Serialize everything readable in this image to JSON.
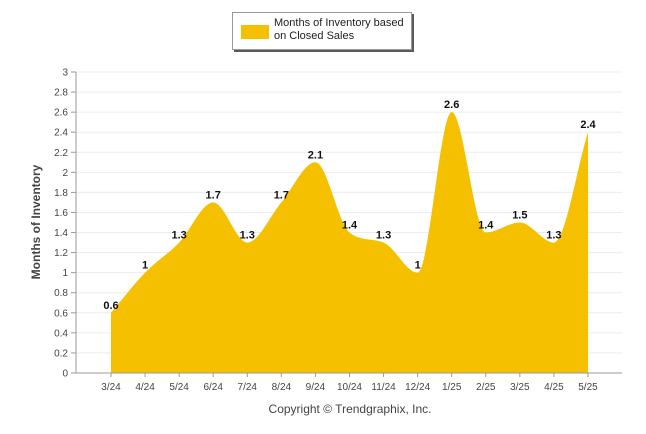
{
  "legend": {
    "label": "Months of Inventory based on Closed Sales",
    "color": "#f5c000"
  },
  "footer": {
    "copyright": "Copyright © Trendgraphix, Inc."
  },
  "chart_data": {
    "type": "area",
    "categories": [
      "3/24",
      "4/24",
      "5/24",
      "6/24",
      "7/24",
      "8/24",
      "9/24",
      "10/24",
      "11/24",
      "12/24",
      "1/25",
      "2/25",
      "3/25",
      "4/25",
      "5/25"
    ],
    "series": [
      {
        "name": "Months of Inventory based on Closed Sales",
        "values": [
          0.6,
          1,
          1.3,
          1.7,
          1.3,
          1.7,
          2.1,
          1.4,
          1.3,
          1,
          2.6,
          1.4,
          1.5,
          1.3,
          2.4
        ],
        "labels": [
          "0.6",
          "1",
          "1.3",
          "1.7",
          "1.3",
          "1.7",
          "2.1",
          "1.4",
          "1.3",
          "1",
          "2.6",
          "1.4",
          "1.5",
          "1.3",
          "2.4"
        ],
        "color": "#f5c000"
      }
    ],
    "title": "",
    "xlabel": "",
    "ylabel": "Months of Inventory",
    "ylim": [
      0,
      3
    ],
    "yticks": [
      "0",
      "0.2",
      "0.4",
      "0.6",
      "0.8",
      "1",
      "1.2",
      "1.4",
      "1.6",
      "1.8",
      "2",
      "2.2",
      "2.4",
      "2.6",
      "2.8",
      "3"
    ],
    "grid": true,
    "legend_position": "top"
  }
}
